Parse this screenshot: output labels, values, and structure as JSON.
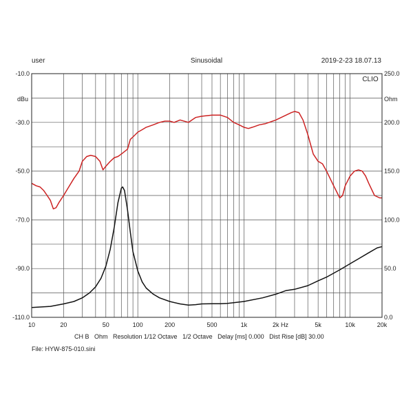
{
  "header": {
    "user": "user",
    "mode": "Sinusoidal",
    "timestamp": "2019-2-23 18.07.13"
  },
  "footer": {
    "settings": "CH B   Ohm   Resolution 1/12 Octave   1/2 Octave   Delay [ms] 0.000   Dist Rise [dB] 30.00",
    "file": "File: HYW-875-010.sini"
  },
  "chart_data": {
    "type": "line",
    "title": "",
    "xlabel": "Hz",
    "ylabel_left": "dBu",
    "ylabel_right": "Ohm",
    "tag": "CLIO",
    "x_scale": "log",
    "xlim": [
      10,
      20000
    ],
    "ylim_left": [
      -110,
      -10
    ],
    "ylim_right": [
      0,
      250
    ],
    "grid": true,
    "x_ticks": [
      10,
      20,
      50,
      100,
      200,
      500,
      1000,
      2000,
      5000,
      10000,
      20000
    ],
    "x_tick_labels": [
      "10",
      "20",
      "50",
      "100",
      "200",
      "500",
      "1k",
      "2k",
      "5k",
      "10k",
      "20k"
    ],
    "y_ticks_left": [
      -10,
      -30,
      -50,
      -70,
      -90,
      -110
    ],
    "y_tick_labels_left": [
      "-10.0",
      "-30.0",
      "-50.0",
      "-70.0",
      "-90.0",
      "-110.0"
    ],
    "y_ticks_right": [
      250,
      200,
      150,
      100,
      50,
      0
    ],
    "y_tick_labels_right": [
      "250.0",
      "200.0",
      "150.0",
      "100.0",
      "50.0",
      "0.0"
    ],
    "series": [
      {
        "axis": "left",
        "color": "#cc2222",
        "points": [
          [
            10,
            -55
          ],
          [
            11,
            -56
          ],
          [
            12,
            -56.5
          ],
          [
            13,
            -58
          ],
          [
            14,
            -60
          ],
          [
            15,
            -62
          ],
          [
            16,
            -65.5
          ],
          [
            17,
            -65
          ],
          [
            18,
            -63
          ],
          [
            20,
            -60
          ],
          [
            22,
            -57
          ],
          [
            25,
            -53
          ],
          [
            28,
            -50
          ],
          [
            30,
            -46
          ],
          [
            33,
            -44
          ],
          [
            36,
            -43.5
          ],
          [
            40,
            -44
          ],
          [
            44,
            -46
          ],
          [
            47,
            -49.5
          ],
          [
            50,
            -48
          ],
          [
            55,
            -46
          ],
          [
            60,
            -44.5
          ],
          [
            65,
            -44
          ],
          [
            70,
            -43
          ],
          [
            80,
            -41
          ],
          [
            85,
            -37
          ],
          [
            90,
            -36
          ],
          [
            100,
            -34
          ],
          [
            110,
            -33
          ],
          [
            120,
            -32
          ],
          [
            140,
            -31
          ],
          [
            160,
            -30
          ],
          [
            180,
            -29.5
          ],
          [
            200,
            -29.5
          ],
          [
            220,
            -30
          ],
          [
            250,
            -29
          ],
          [
            300,
            -30
          ],
          [
            350,
            -28
          ],
          [
            400,
            -27.5
          ],
          [
            500,
            -27
          ],
          [
            600,
            -27
          ],
          [
            700,
            -28
          ],
          [
            800,
            -30
          ],
          [
            900,
            -31
          ],
          [
            1000,
            -32
          ],
          [
            1100,
            -32.5
          ],
          [
            1200,
            -32
          ],
          [
            1400,
            -31
          ],
          [
            1600,
            -30.5
          ],
          [
            2000,
            -29
          ],
          [
            2500,
            -27
          ],
          [
            2800,
            -26
          ],
          [
            3000,
            -25.5
          ],
          [
            3300,
            -26
          ],
          [
            3600,
            -29
          ],
          [
            4000,
            -35
          ],
          [
            4500,
            -43
          ],
          [
            5000,
            -46
          ],
          [
            5500,
            -47
          ],
          [
            6000,
            -50
          ],
          [
            7000,
            -56
          ],
          [
            8000,
            -61
          ],
          [
            8500,
            -60
          ],
          [
            9000,
            -56
          ],
          [
            10000,
            -52
          ],
          [
            11000,
            -50
          ],
          [
            12000,
            -49.5
          ],
          [
            13000,
            -50
          ],
          [
            14000,
            -52
          ],
          [
            15000,
            -55
          ],
          [
            17000,
            -60
          ],
          [
            19000,
            -61
          ],
          [
            20000,
            -61
          ]
        ]
      },
      {
        "axis": "left",
        "color": "#111111",
        "points": [
          [
            10,
            -106
          ],
          [
            15,
            -105.5
          ],
          [
            20,
            -104.5
          ],
          [
            25,
            -103.5
          ],
          [
            30,
            -102
          ],
          [
            35,
            -100
          ],
          [
            40,
            -97.5
          ],
          [
            45,
            -94
          ],
          [
            50,
            -89
          ],
          [
            55,
            -82
          ],
          [
            60,
            -73
          ],
          [
            65,
            -63
          ],
          [
            70,
            -57
          ],
          [
            72,
            -56.5
          ],
          [
            75,
            -58
          ],
          [
            80,
            -66
          ],
          [
            85,
            -75
          ],
          [
            90,
            -83
          ],
          [
            100,
            -91
          ],
          [
            110,
            -95.5
          ],
          [
            120,
            -98
          ],
          [
            140,
            -100.5
          ],
          [
            160,
            -102
          ],
          [
            200,
            -103.5
          ],
          [
            250,
            -104.5
          ],
          [
            300,
            -105
          ],
          [
            350,
            -104.8
          ],
          [
            400,
            -104.5
          ],
          [
            500,
            -104.4
          ],
          [
            600,
            -104.4
          ],
          [
            700,
            -104.3
          ],
          [
            800,
            -104
          ],
          [
            1000,
            -103.5
          ],
          [
            1500,
            -102
          ],
          [
            2000,
            -100.5
          ],
          [
            2500,
            -99
          ],
          [
            3000,
            -98.5
          ],
          [
            4000,
            -97
          ],
          [
            5000,
            -95
          ],
          [
            6000,
            -93.5
          ],
          [
            8000,
            -90.5
          ],
          [
            10000,
            -88
          ],
          [
            12000,
            -86
          ],
          [
            15000,
            -83.5
          ],
          [
            18000,
            -81.5
          ],
          [
            20000,
            -81
          ]
        ]
      }
    ]
  }
}
